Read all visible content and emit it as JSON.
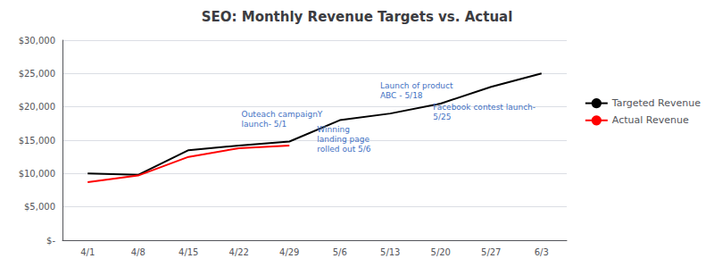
{
  "chart_data": {
    "type": "line",
    "title": "SEO: Monthly Revenue Targets vs. Actual",
    "categories": [
      "4/1",
      "4/8",
      "4/15",
      "4/22",
      "4/29",
      "5/6",
      "5/13",
      "5/20",
      "5/27",
      "6/3"
    ],
    "series": [
      {
        "name": "Targeted Revenue",
        "color": "#000000",
        "values": [
          10000,
          9800,
          13500,
          14200,
          14800,
          18000,
          19000,
          20500,
          23000,
          25000
        ]
      },
      {
        "name": "Actual Revenue",
        "color": "#FF0000",
        "values": [
          8700,
          9700,
          12500,
          13800,
          14200,
          null,
          null,
          null,
          null,
          null
        ]
      }
    ],
    "ylim": [
      0,
      30000
    ],
    "yticks": [
      {
        "value": 0,
        "label": "$-"
      },
      {
        "value": 5000,
        "label": "$5,000"
      },
      {
        "value": 10000,
        "label": "$10,000"
      },
      {
        "value": 15000,
        "label": "$15,000"
      },
      {
        "value": 20000,
        "label": "$20,000"
      },
      {
        "value": 25000,
        "label": "$25,000"
      },
      {
        "value": 30000,
        "label": "$30,000"
      }
    ],
    "grid": true,
    "legend": "right",
    "annotations": [
      {
        "text": "Outeach campaignY\nlaunch- 5/1",
        "x": 3.05,
        "y": 18200,
        "color": "#4472C4"
      },
      {
        "text": "Winning\nlanding page\nrolled out 5/6",
        "x": 4.55,
        "y": 15200,
        "color": "#4472C4"
      },
      {
        "text": "Launch of product\nABC - 5/18",
        "x": 5.8,
        "y": 22500,
        "color": "#4472C4"
      },
      {
        "text": "Facebook contest launch-\n5/25",
        "x": 6.85,
        "y": 19200,
        "color": "#4472C4"
      }
    ]
  }
}
